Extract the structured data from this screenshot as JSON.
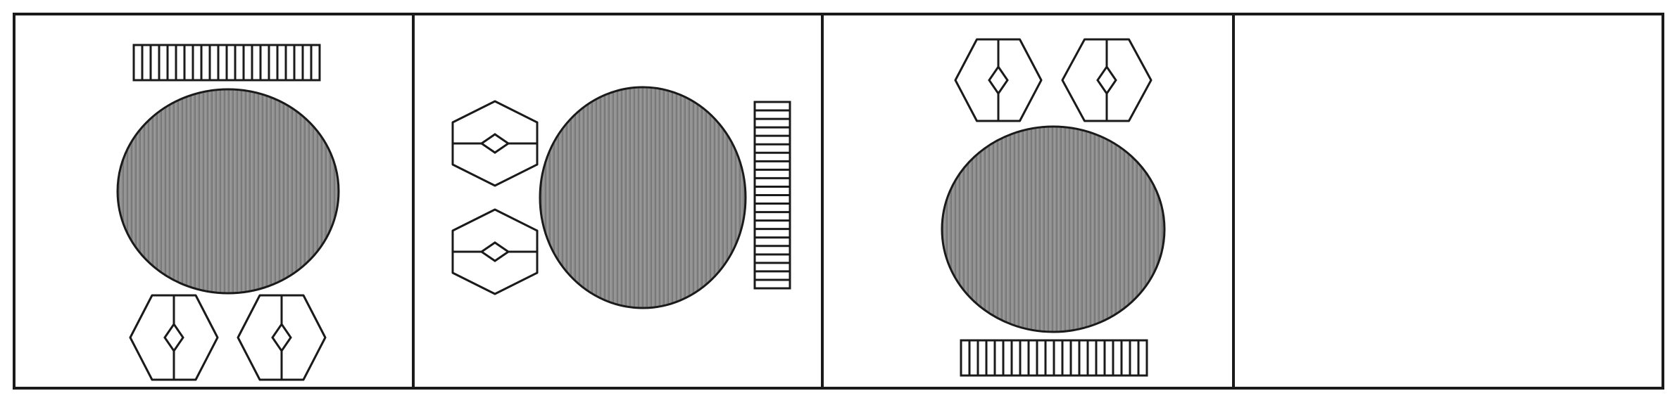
{
  "colors": {
    "stroke": "#1a1a1a",
    "circle_fill": "#8f8f8f",
    "circle_stripe": "#7a7a7a",
    "background": "#ffffff"
  },
  "panels": [
    {
      "items": [
        "striped-bar",
        "gray-circle",
        "hexagon-diamond",
        "hexagon-diamond"
      ],
      "bar_orientation": "horizontal",
      "bar_position": "top",
      "hexagon_position": "bottom",
      "hexagon_divider": "vertical"
    },
    {
      "items": [
        "hexagon-diamond",
        "hexagon-diamond",
        "gray-circle",
        "striped-bar"
      ],
      "bar_orientation": "vertical",
      "bar_position": "right",
      "hexagon_position": "left",
      "hexagon_divider": "horizontal"
    },
    {
      "items": [
        "hexagon-diamond",
        "hexagon-diamond",
        "gray-circle",
        "striped-bar"
      ],
      "bar_orientation": "horizontal",
      "bar_position": "bottom",
      "hexagon_position": "top",
      "hexagon_divider": "vertical"
    },
    {
      "items": [],
      "empty": true
    }
  ]
}
